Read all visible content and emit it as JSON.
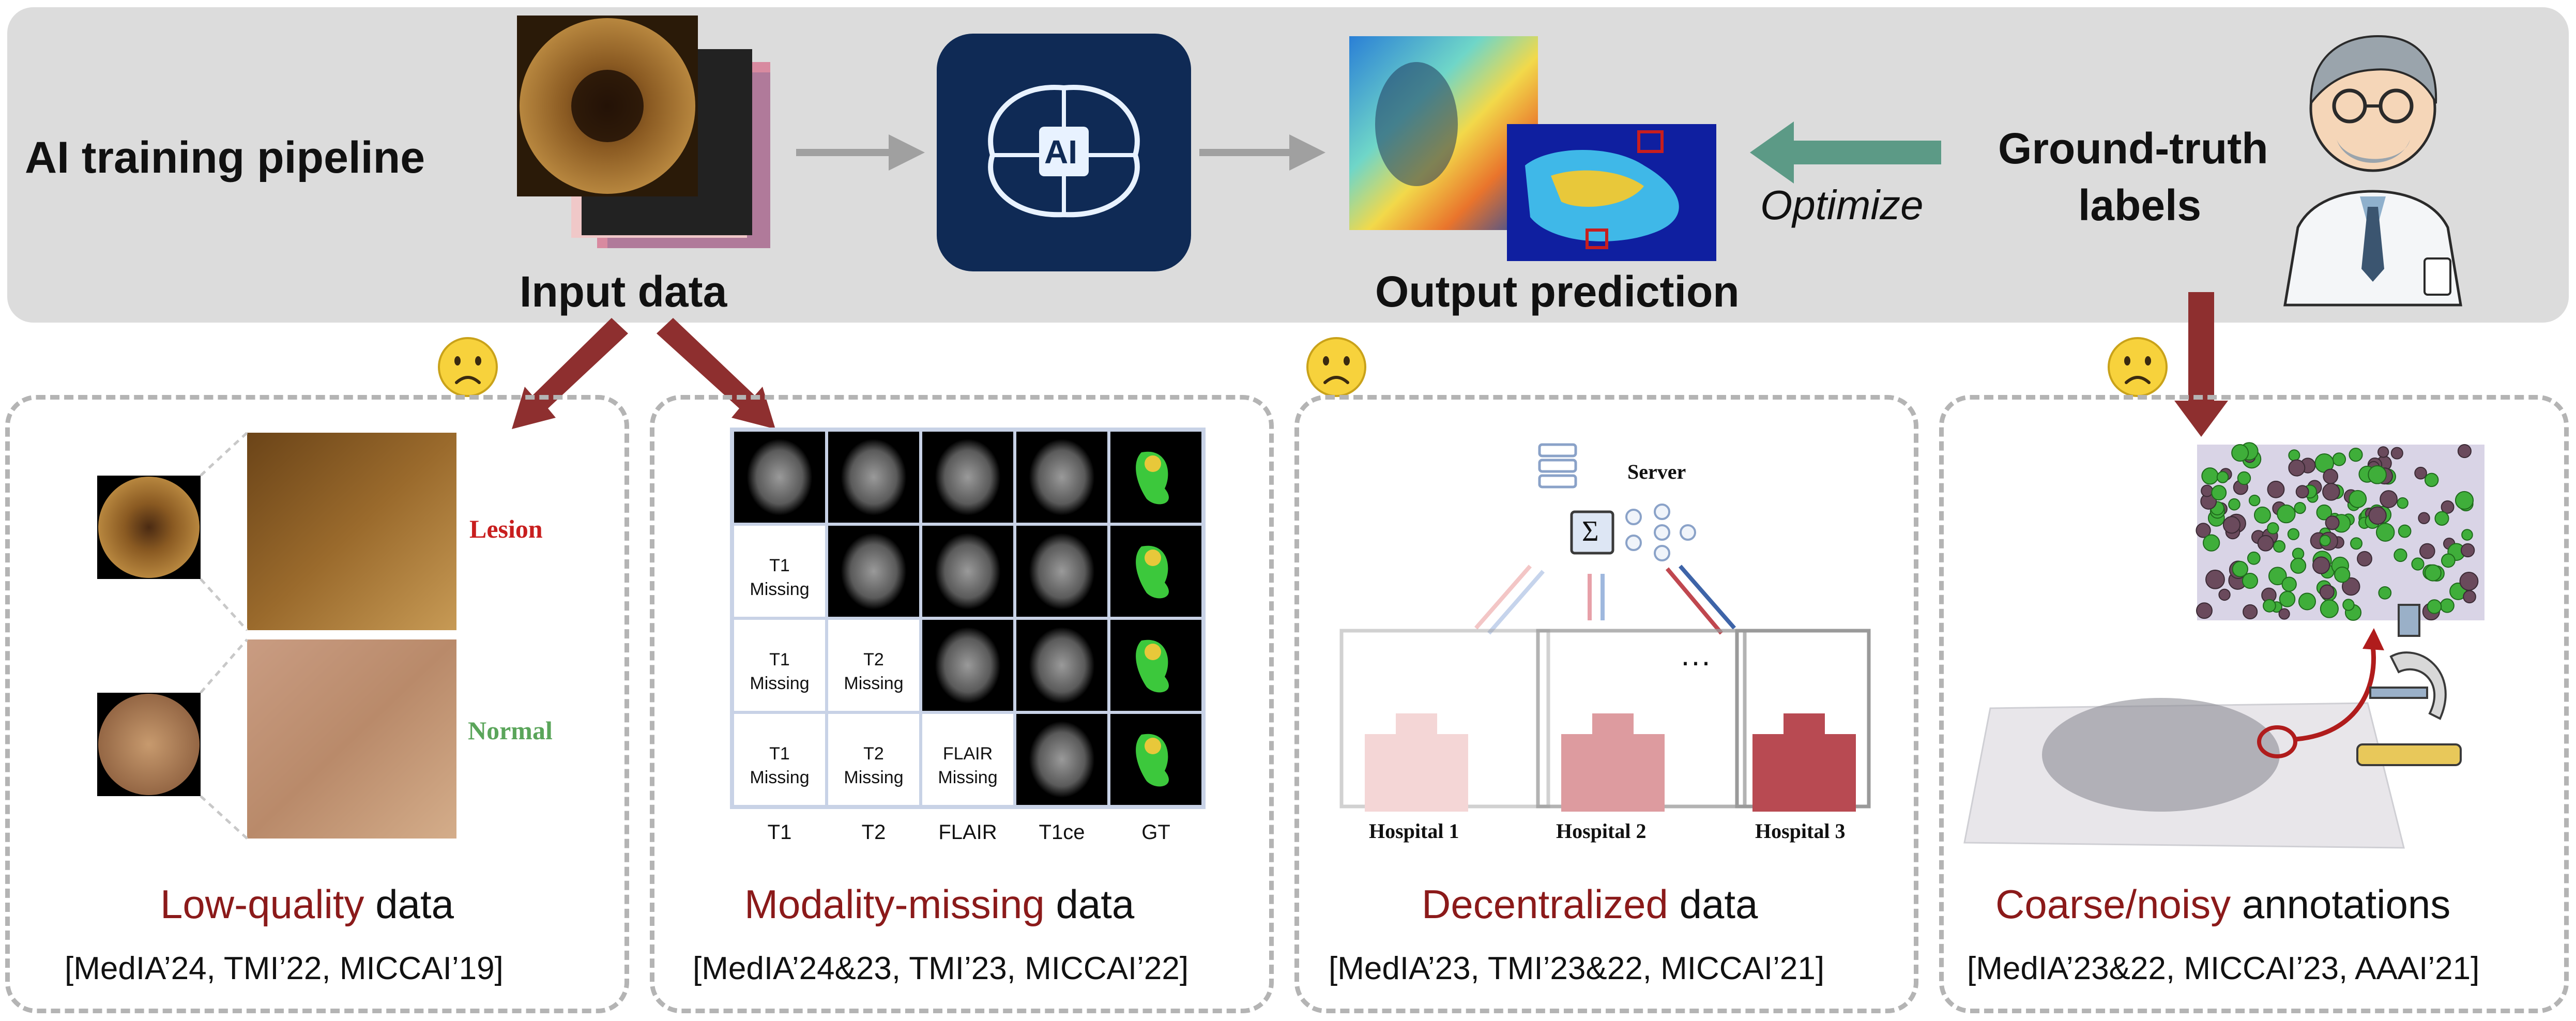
{
  "top": {
    "title": "AI training pipeline",
    "input_label": "Input data",
    "output_label": "Output prediction",
    "optimize_label": "Optimize",
    "gt_line1": "Ground-truth",
    "gt_line2": "labels",
    "ai_chip": "AI"
  },
  "panels": [
    {
      "title_hl": "Low-quality",
      "title_rest": " data",
      "refs": "[MedIA’24, TMI’22, MICCAI’19]",
      "lesion_label": "Lesion",
      "normal_label": "Normal"
    },
    {
      "title_hl": "Modality-missing",
      "title_rest": " data",
      "refs": "[MedIA’24&23, TMI’23, MICCAI’22]",
      "columns": [
        "T1",
        "T2",
        "FLAIR",
        "T1ce",
        "GT"
      ],
      "missing": [
        {
          "line1": "T1",
          "line2": "Missing"
        },
        {
          "line1": "T1",
          "line2": "Missing"
        },
        {
          "line1": "T2",
          "line2": "Missing"
        },
        {
          "line1": "T1",
          "line2": "Missing"
        },
        {
          "line1": "T2",
          "line2": "Missing"
        },
        {
          "line1": "FLAIR",
          "line2": "Missing"
        }
      ]
    },
    {
      "title_hl": "Decentralized",
      "title_rest": " data",
      "refs": "[MedIA’23, TMI’23&22, MICCAI’21]",
      "server_label": "Server",
      "sigma": "Σ",
      "hospitals": [
        "Hospital 1",
        "Hospital 2",
        "Hospital 3"
      ],
      "ellipsis": "···"
    },
    {
      "title_hl": "Coarse/noisy",
      "title_rest": " annotations",
      "refs": "[MedIA’23&22, MICCAI’23, AAAI’21]"
    }
  ],
  "colors": {
    "highlight": "#8b1a1a",
    "lesion": "#c81e1e",
    "normal": "#5aa55a",
    "optimize_arrow": "#5c9a86",
    "red_arrow": "#8e2f2f",
    "gray_arrow": "#a0a0a0",
    "top_band": "#dcdcdc"
  }
}
